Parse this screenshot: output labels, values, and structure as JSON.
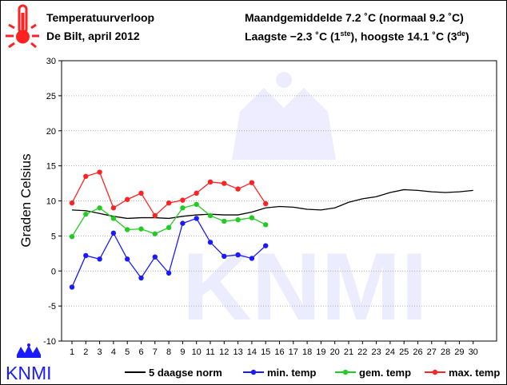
{
  "header": {
    "title": "Temperatuurverloop",
    "subtitle": "De Bilt, april 2012",
    "month_avg_prefix": "Maandgemiddelde 7.2 ˚C (normaal 9.2 ˚C)",
    "lowest_text": "Laagste −2.3 ˚C (1",
    "lowest_sup": "ste",
    "highest_text": "), hoogste 14.1 ˚C (3",
    "highest_sup": "de",
    "highest_close": ")"
  },
  "logo": {
    "text": "KNMI",
    "color": "#1a1aff"
  },
  "colors": {
    "norm": "#000000",
    "min": "#1a1aff",
    "gem": "#22cc22",
    "max": "#ff2222",
    "thermo": "#ff2222",
    "grid": "#999999"
  },
  "chart_data": {
    "type": "line",
    "ylabel": "Graden Celsius",
    "xlabel": "",
    "ylim": [
      -10,
      30
    ],
    "yticks": [
      -10,
      -5,
      0,
      5,
      10,
      15,
      20,
      25,
      30
    ],
    "xticks": [
      1,
      2,
      3,
      4,
      5,
      6,
      7,
      8,
      9,
      10,
      11,
      12,
      13,
      14,
      15,
      16,
      17,
      18,
      19,
      20,
      21,
      22,
      23,
      24,
      25,
      26,
      27,
      28,
      29,
      30
    ],
    "xlim": [
      1,
      30
    ],
    "grid": "horizontal",
    "legend_position": "bottom",
    "series": [
      {
        "name": "5 daagse norm",
        "key": "norm",
        "markers": false,
        "x": [
          1,
          2,
          3,
          4,
          5,
          6,
          7,
          8,
          9,
          10,
          11,
          12,
          13,
          14,
          15,
          16,
          17,
          18,
          19,
          20,
          21,
          22,
          23,
          24,
          25,
          26,
          27,
          28,
          29,
          30
        ],
        "values": [
          8.7,
          8.6,
          8.2,
          7.8,
          7.5,
          7.6,
          7.6,
          7.5,
          7.8,
          8.0,
          8.1,
          8.0,
          8.0,
          8.4,
          9.0,
          9.2,
          9.1,
          8.8,
          8.7,
          9.0,
          9.8,
          10.3,
          10.6,
          11.2,
          11.6,
          11.5,
          11.3,
          11.2,
          11.3,
          11.5
        ]
      },
      {
        "name": "min. temp",
        "key": "min",
        "markers": true,
        "x": [
          1,
          2,
          3,
          4,
          5,
          6,
          7,
          8,
          9,
          10,
          11,
          12,
          13,
          14,
          15
        ],
        "values": [
          -2.3,
          2.2,
          1.7,
          5.4,
          1.7,
          -1.0,
          2.0,
          -0.3,
          6.8,
          7.5,
          4.1,
          2.1,
          2.3,
          1.8,
          3.6
        ]
      },
      {
        "name": "gem. temp",
        "key": "gem",
        "markers": true,
        "x": [
          1,
          2,
          3,
          4,
          5,
          6,
          7,
          8,
          9,
          10,
          11,
          12,
          13,
          14,
          15
        ],
        "values": [
          4.9,
          8.1,
          9.0,
          7.5,
          5.9,
          6.0,
          5.3,
          6.2,
          9.0,
          9.5,
          7.9,
          7.1,
          7.3,
          7.6,
          6.6
        ]
      },
      {
        "name": "max. temp",
        "key": "max",
        "markers": true,
        "x": [
          1,
          2,
          3,
          4,
          5,
          6,
          7,
          8,
          9,
          10,
          11,
          12,
          13,
          14,
          15
        ],
        "values": [
          9.7,
          13.5,
          14.1,
          9.0,
          10.2,
          11.1,
          7.9,
          9.7,
          10.1,
          11.1,
          12.7,
          12.5,
          11.7,
          12.6,
          9.6
        ]
      }
    ]
  }
}
